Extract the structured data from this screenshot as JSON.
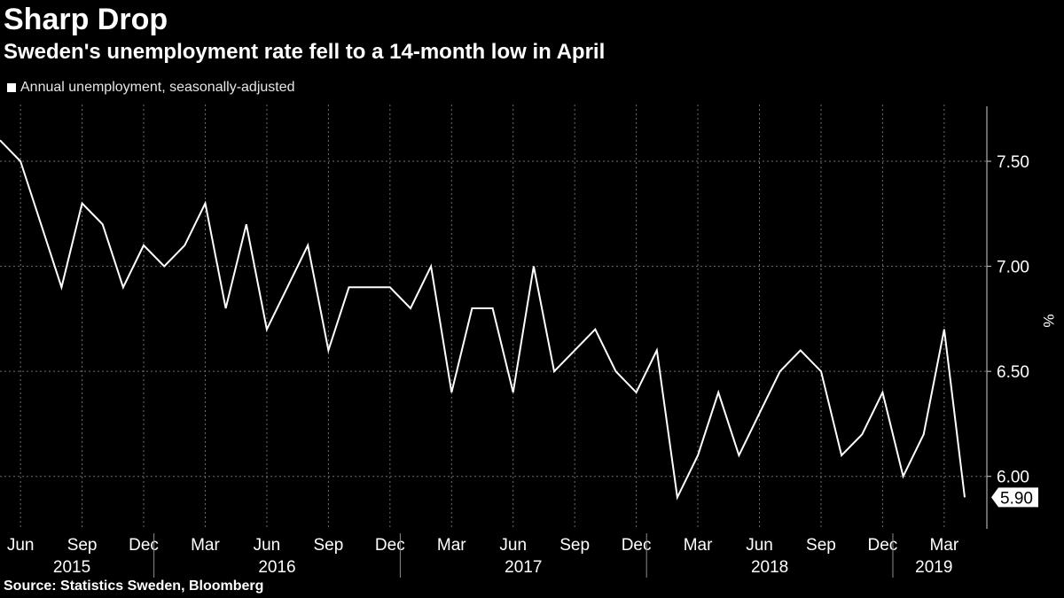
{
  "header": {
    "title": "Sharp Drop",
    "subtitle": "Sweden's unemployment rate fell to a 14-month low in April"
  },
  "legend": {
    "label": "Annual unemployment, seasonally-adjusted"
  },
  "footer": {
    "source": "Source: Statistics Sweden, Bloomberg"
  },
  "chart_data": {
    "type": "line",
    "x": [
      "2015-05",
      "2015-06",
      "2015-07",
      "2015-08",
      "2015-09",
      "2015-10",
      "2015-11",
      "2015-12",
      "2016-01",
      "2016-02",
      "2016-03",
      "2016-04",
      "2016-05",
      "2016-06",
      "2016-07",
      "2016-08",
      "2016-09",
      "2016-10",
      "2016-11",
      "2016-12",
      "2017-01",
      "2017-02",
      "2017-03",
      "2017-04",
      "2017-05",
      "2017-06",
      "2017-07",
      "2017-08",
      "2017-09",
      "2017-10",
      "2017-11",
      "2017-12",
      "2018-01",
      "2018-02",
      "2018-03",
      "2018-04",
      "2018-05",
      "2018-06",
      "2018-07",
      "2018-08",
      "2018-09",
      "2018-10",
      "2018-11",
      "2018-12",
      "2019-01",
      "2019-02",
      "2019-03",
      "2019-04"
    ],
    "series": [
      {
        "name": "Annual unemployment, seasonally-adjusted",
        "color": "#ffffff",
        "values": [
          7.6,
          7.5,
          7.2,
          6.9,
          7.3,
          7.2,
          6.9,
          7.1,
          7.0,
          7.1,
          7.3,
          6.8,
          7.2,
          6.7,
          6.9,
          7.1,
          6.6,
          6.9,
          6.9,
          6.9,
          6.8,
          7.0,
          6.4,
          6.8,
          6.8,
          6.4,
          7.0,
          6.5,
          6.6,
          6.7,
          6.5,
          6.4,
          6.6,
          5.9,
          6.1,
          6.4,
          6.1,
          6.3,
          6.5,
          6.6,
          6.5,
          6.1,
          6.2,
          6.4,
          6.0,
          6.2,
          6.7,
          5.9
        ]
      }
    ],
    "ylabel": "%",
    "ylim": [
      5.75,
      7.77
    ],
    "y_ticks": [
      "6.00",
      "6.50",
      "7.00",
      "7.50"
    ],
    "y_tick_values": [
      6.0,
      6.5,
      7.0,
      7.5
    ],
    "y_axis_position": "right",
    "x_month_ticks": [
      {
        "label": "Jun",
        "index": 1
      },
      {
        "label": "Sep",
        "index": 4
      },
      {
        "label": "Dec",
        "index": 7
      },
      {
        "label": "Mar",
        "index": 10
      },
      {
        "label": "Jun",
        "index": 13
      },
      {
        "label": "Sep",
        "index": 16
      },
      {
        "label": "Dec",
        "index": 19
      },
      {
        "label": "Mar",
        "index": 22
      },
      {
        "label": "Jun",
        "index": 25
      },
      {
        "label": "Sep",
        "index": 28
      },
      {
        "label": "Dec",
        "index": 31
      },
      {
        "label": "Mar",
        "index": 34
      },
      {
        "label": "Jun",
        "index": 37
      },
      {
        "label": "Sep",
        "index": 40
      },
      {
        "label": "Dec",
        "index": 43
      },
      {
        "label": "Mar",
        "index": 46
      }
    ],
    "x_year_labels": [
      {
        "label": "2015",
        "start": 0,
        "end": 7
      },
      {
        "label": "2016",
        "start": 8,
        "end": 19
      },
      {
        "label": "2017",
        "start": 20,
        "end": 31
      },
      {
        "label": "2018",
        "start": 32,
        "end": 43
      },
      {
        "label": "2019",
        "start": 44,
        "end": 47
      }
    ],
    "last_value_label": "5.90",
    "grid": true
  }
}
